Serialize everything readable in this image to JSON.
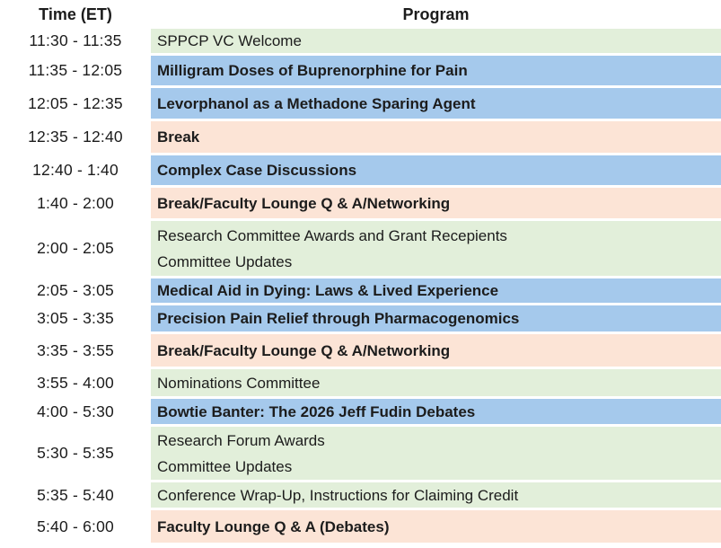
{
  "table": {
    "columns": {
      "time": "Time (ET)",
      "program": "Program"
    },
    "colors": {
      "green": "#e2efda",
      "blue": "#a5c9ec",
      "peach": "#fce4d6",
      "background": "#ffffff",
      "text": "#1c1c1c"
    },
    "rows": [
      {
        "time": "11:30 - 11:35",
        "program_lines": [
          "SPPCP VC Welcome"
        ],
        "color": "green",
        "bold": false
      },
      {
        "time": "11:35 - 12:05",
        "program_lines": [
          "Milligram Doses of Buprenorphine for Pain"
        ],
        "color": "blue",
        "bold": true
      },
      {
        "time": "12:05 - 12:35",
        "program_lines": [
          "Levorphanol as a Methadone Sparing Agent"
        ],
        "color": "blue",
        "bold": true
      },
      {
        "time": "12:35 - 12:40",
        "program_lines": [
          "Break"
        ],
        "color": "peach",
        "bold": true
      },
      {
        "time": "12:40 - 1:40",
        "program_lines": [
          "Complex Case Discussions"
        ],
        "color": "blue",
        "bold": true
      },
      {
        "time": "1:40 - 2:00",
        "program_lines": [
          "Break/Faculty Lounge Q & A/Networking"
        ],
        "color": "peach",
        "bold": true
      },
      {
        "time": "2:00 - 2:05",
        "program_lines": [
          "Research Committee Awards and Grant Recepients",
          "Committee Updates"
        ],
        "color": "green",
        "bold": false
      },
      {
        "time": "2:05 - 3:05",
        "program_lines": [
          "Medical Aid in Dying: Laws & Lived Experience"
        ],
        "color": "blue",
        "bold": true
      },
      {
        "time": "3:05 - 3:35",
        "program_lines": [
          "Precision Pain Relief through Pharmacogenomics"
        ],
        "color": "blue",
        "bold": true
      },
      {
        "time": "3:35 - 3:55",
        "program_lines": [
          "Break/Faculty Lounge Q & A/Networking"
        ],
        "color": "peach",
        "bold": true
      },
      {
        "time": "3:55 - 4:00",
        "program_lines": [
          "Nominations Committee"
        ],
        "color": "green",
        "bold": false
      },
      {
        "time": "4:00 - 5:30",
        "program_lines": [
          "Bowtie Banter: The 2026 Jeff Fudin Debates"
        ],
        "color": "blue",
        "bold": true
      },
      {
        "time": "5:30 - 5:35",
        "program_lines": [
          "Research Forum Awards",
          "Committee Updates"
        ],
        "color": "green",
        "bold": false
      },
      {
        "time": "5:35 - 5:40",
        "program_lines": [
          "Conference Wrap-Up, Instructions for Claiming Credit"
        ],
        "color": "green",
        "bold": false
      },
      {
        "time": "5:40 - 6:00",
        "program_lines": [
          "Faculty Lounge Q & A (Debates)"
        ],
        "color": "peach",
        "bold": true
      }
    ]
  }
}
